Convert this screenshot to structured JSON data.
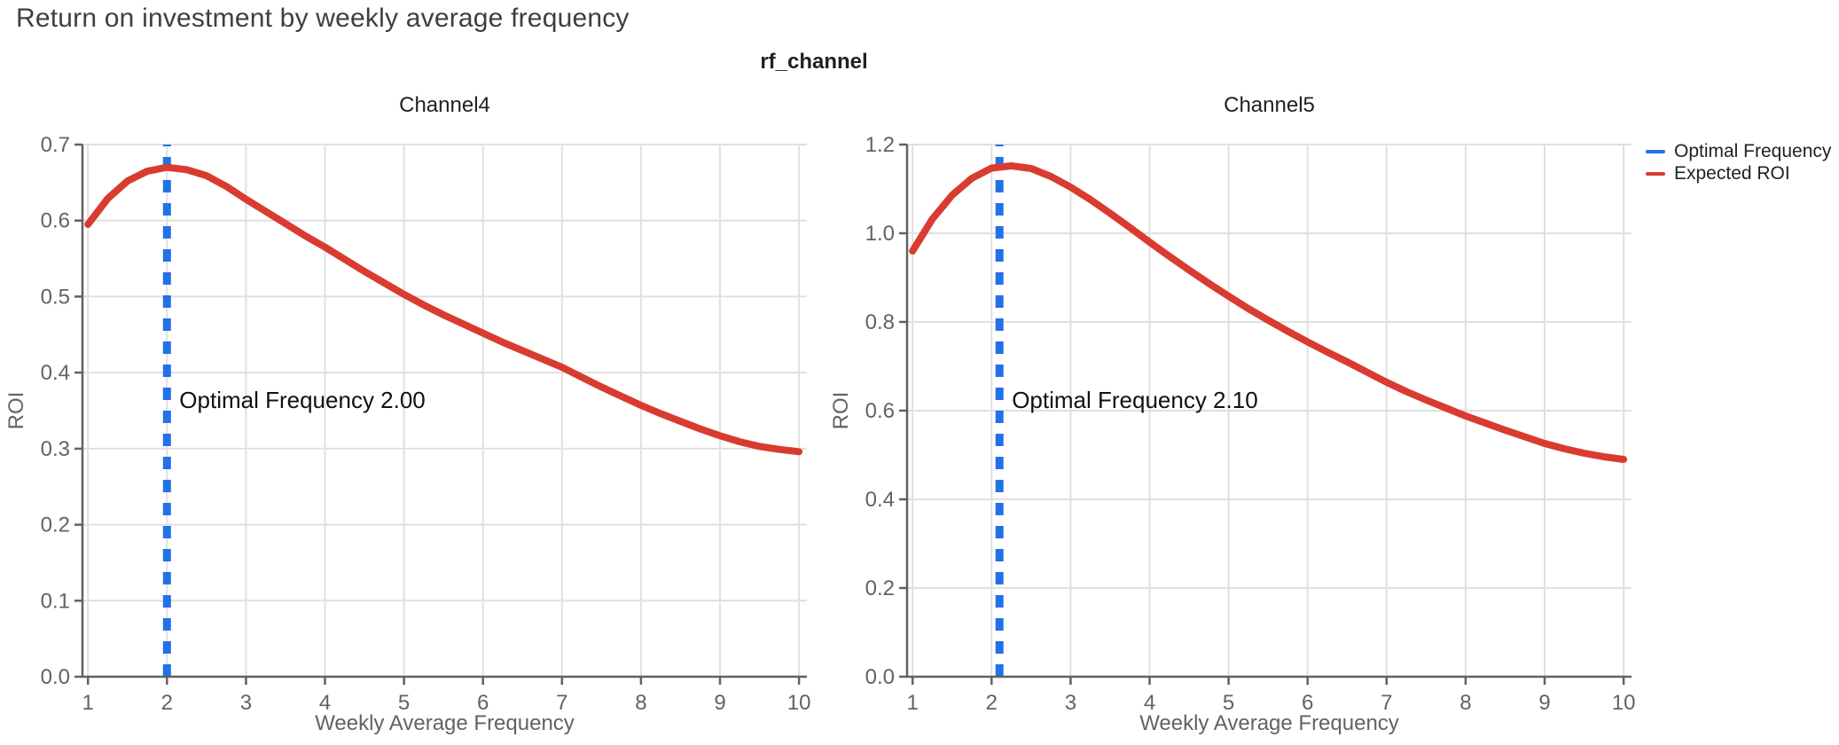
{
  "page": {
    "title": "Return on investment by weekly average frequency"
  },
  "facet": {
    "label": "rf_channel"
  },
  "colors": {
    "optimal_frequency_blue": "#2172e5",
    "expected_roi_red": "#d93b30",
    "gridline": "#e0e0e0",
    "spine": "#616161",
    "axis_text": "#5f6368",
    "title_text": "#3c4043",
    "black_text": "#202124"
  },
  "legend": {
    "position": "top-right-outside",
    "items": [
      {
        "label": "Optimal Frequency",
        "color": "#2172e5"
      },
      {
        "label": "Expected ROI",
        "color": "#d93b30"
      }
    ]
  },
  "chart_data": [
    {
      "type": "line",
      "title": "Channel4",
      "xlabel": "Weekly Average Frequency",
      "ylabel": "ROI",
      "grid": true,
      "xlim": [
        0.93,
        10.1
      ],
      "ylim": [
        0,
        0.7
      ],
      "xticks": {
        "values": [
          1,
          2,
          3,
          4,
          5,
          6,
          7,
          8,
          9,
          10
        ],
        "labels": [
          "1",
          "2",
          "3",
          "4",
          "5",
          "6",
          "7",
          "8",
          "9",
          "10"
        ]
      },
      "yticks": {
        "values": [
          0,
          0.1,
          0.2,
          0.3,
          0.4,
          0.5,
          0.6,
          0.7
        ],
        "labels": [
          "0.0",
          "0.1",
          "0.2",
          "0.3",
          "0.4",
          "0.5",
          "0.6",
          "0.7"
        ]
      },
      "optimal_frequency": 2.0,
      "vline": {
        "name": "Optimal Frequency",
        "x": 2.0,
        "style": "dashed"
      },
      "annotation": {
        "text": "Optimal Frequency  2.00",
        "x": 2.0,
        "y": 0.3535
      },
      "series": [
        {
          "name": "Expected ROI",
          "x": [
            1,
            1.25,
            1.5,
            1.75,
            2,
            2.25,
            2.5,
            2.75,
            3,
            3.25,
            3.5,
            3.75,
            4,
            4.25,
            4.5,
            4.75,
            5,
            5.25,
            5.5,
            5.75,
            6,
            6.25,
            6.5,
            6.75,
            7,
            7.25,
            7.5,
            7.75,
            8,
            8.25,
            8.5,
            8.75,
            9,
            9.25,
            9.5,
            9.75,
            10
          ],
          "y": [
            0.595,
            0.629,
            0.652,
            0.665,
            0.67,
            0.667,
            0.659,
            0.645,
            0.628,
            0.612,
            0.596,
            0.58,
            0.565,
            0.549,
            0.533,
            0.518,
            0.503,
            0.489,
            0.476,
            0.464,
            0.452,
            0.44,
            0.429,
            0.418,
            0.407,
            0.394,
            0.381,
            0.369,
            0.357,
            0.346,
            0.336,
            0.326,
            0.317,
            0.309,
            0.303,
            0.299,
            0.296
          ]
        }
      ]
    },
    {
      "type": "line",
      "title": "Channel5",
      "xlabel": "Weekly Average Frequency",
      "ylabel": "ROI",
      "grid": true,
      "xlim": [
        0.93,
        10.1
      ],
      "ylim": [
        0,
        1.2
      ],
      "xticks": {
        "values": [
          1,
          2,
          3,
          4,
          5,
          6,
          7,
          8,
          9,
          10
        ],
        "labels": [
          "1",
          "2",
          "3",
          "4",
          "5",
          "6",
          "7",
          "8",
          "9",
          "10"
        ]
      },
      "yticks": {
        "values": [
          0,
          0.2,
          0.4,
          0.6,
          0.8,
          1.0,
          1.2
        ],
        "labels": [
          "0.0",
          "0.2",
          "0.4",
          "0.6",
          "0.8",
          "1.0",
          "1.2"
        ]
      },
      "optimal_frequency": 2.1,
      "vline": {
        "name": "Optimal Frequency",
        "x": 2.1,
        "style": "dashed"
      },
      "annotation": {
        "text": "Optimal Frequency  2.10",
        "x": 2.1,
        "y": 0.606
      },
      "series": [
        {
          "name": "Expected ROI",
          "x": [
            1,
            1.25,
            1.5,
            1.75,
            2,
            2.25,
            2.5,
            2.75,
            3,
            3.25,
            3.5,
            3.75,
            4,
            4.25,
            4.5,
            4.75,
            5,
            5.25,
            5.5,
            5.75,
            6,
            6.25,
            6.5,
            6.75,
            7,
            7.25,
            7.5,
            7.75,
            8,
            8.25,
            8.5,
            8.75,
            9,
            9.25,
            9.5,
            9.75,
            10
          ],
          "y": [
            0.96,
            1.032,
            1.086,
            1.124,
            1.147,
            1.152,
            1.146,
            1.128,
            1.104,
            1.076,
            1.045,
            1.013,
            0.98,
            0.948,
            0.917,
            0.887,
            0.858,
            0.83,
            0.804,
            0.779,
            0.755,
            0.732,
            0.71,
            0.687,
            0.664,
            0.643,
            0.624,
            0.606,
            0.588,
            0.572,
            0.556,
            0.541,
            0.526,
            0.514,
            0.504,
            0.496,
            0.49
          ]
        }
      ]
    }
  ]
}
